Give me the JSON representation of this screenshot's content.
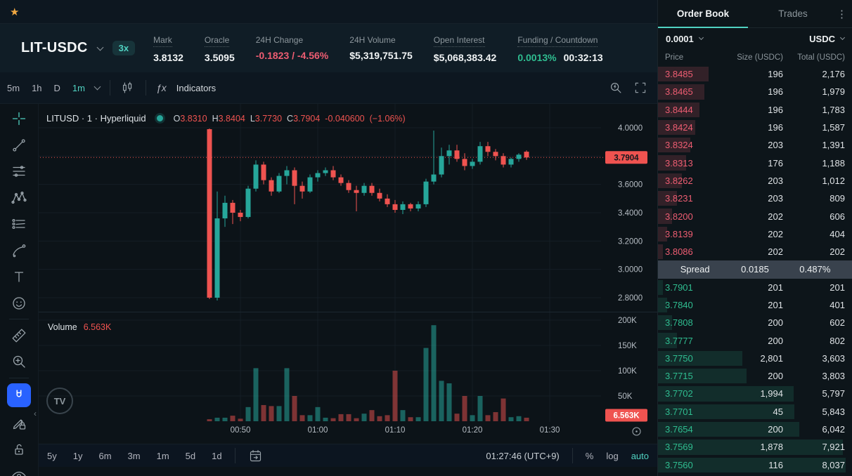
{
  "colors": {
    "accent": "#50d2c1",
    "up": "#26a69a",
    "down": "#ef5350",
    "bid": "#2fbd90",
    "ask": "#ee5d72",
    "magnet": "#2962ff",
    "star": "#f0a842"
  },
  "icons": {
    "star": "★",
    "kebab": "⋮",
    "fx": "ƒx",
    "tv": "TV",
    "collapse": "‹"
  },
  "header": {
    "symbol": "LIT-USDC",
    "leverage": "3x",
    "stats": [
      {
        "label": "Mark",
        "dotted": true,
        "parts": [
          {
            "text": "3.8132"
          }
        ]
      },
      {
        "label": "Oracle",
        "dotted": true,
        "parts": [
          {
            "text": "3.5095"
          }
        ]
      },
      {
        "label": "24H Change",
        "dotted": false,
        "parts": [
          {
            "text": "-0.1823 / -4.56%",
            "cls": "neg"
          }
        ]
      },
      {
        "label": "24H Volume",
        "dotted": false,
        "parts": [
          {
            "text": "$5,319,751.75"
          }
        ]
      },
      {
        "label": "Open Interest",
        "dotted": true,
        "parts": [
          {
            "text": "$5,068,383.42"
          }
        ]
      },
      {
        "label": "Funding / Countdown",
        "dotted": true,
        "parts": [
          {
            "text": "0.0013%",
            "cls": "pos"
          },
          {
            "text": "00:32:13"
          }
        ]
      }
    ]
  },
  "chart_toolbar": {
    "intervals": [
      "5m",
      "1h",
      "D",
      "1m"
    ],
    "active_interval": "1m",
    "indicators_label": "Indicators"
  },
  "legend": {
    "title": "LITUSD · 1 · Hyperliquid",
    "ohlc": [
      {
        "k": "O",
        "v": "3.8310"
      },
      {
        "k": "H",
        "v": "3.8404"
      },
      {
        "k": "L",
        "v": "3.7730"
      },
      {
        "k": "C",
        "v": "3.7904"
      }
    ],
    "change": "-0.040600",
    "change_pct": "(−1.06%)"
  },
  "volume_legend": {
    "label": "Volume",
    "value": "6.563K"
  },
  "bottom_toolbar": {
    "ranges": [
      "5y",
      "1y",
      "6m",
      "3m",
      "1m",
      "5d",
      "1d"
    ],
    "clock": "01:27:46 (UTC+9)",
    "percent_label": "%",
    "log_label": "log",
    "auto_label": "auto"
  },
  "orderbook": {
    "tabs": [
      "Order Book",
      "Trades"
    ],
    "active_tab": "Order Book",
    "tick_size": "0.0001",
    "quote_currency": "USDC",
    "columns": [
      "Price",
      "Size (USDC)",
      "Total (USDC)"
    ],
    "asks": [
      {
        "price": "3.8485",
        "size": "196",
        "total": "2,176"
      },
      {
        "price": "3.8465",
        "size": "196",
        "total": "1,979"
      },
      {
        "price": "3.8444",
        "size": "196",
        "total": "1,783"
      },
      {
        "price": "3.8424",
        "size": "196",
        "total": "1,587"
      },
      {
        "price": "3.8324",
        "size": "203",
        "total": "1,391"
      },
      {
        "price": "3.8313",
        "size": "176",
        "total": "1,188"
      },
      {
        "price": "3.8262",
        "size": "203",
        "total": "1,012"
      },
      {
        "price": "3.8231",
        "size": "203",
        "total": "809"
      },
      {
        "price": "3.8200",
        "size": "202",
        "total": "606"
      },
      {
        "price": "3.8139",
        "size": "202",
        "total": "404"
      },
      {
        "price": "3.8086",
        "size": "202",
        "total": "202"
      }
    ],
    "spread": {
      "label": "Spread",
      "value": "0.0185",
      "pct": "0.487%"
    },
    "bids": [
      {
        "price": "3.7901",
        "size": "201",
        "total": "201"
      },
      {
        "price": "3.7840",
        "size": "201",
        "total": "401"
      },
      {
        "price": "3.7808",
        "size": "200",
        "total": "602"
      },
      {
        "price": "3.7777",
        "size": "200",
        "total": "802"
      },
      {
        "price": "3.7750",
        "size": "2,801",
        "total": "3,603"
      },
      {
        "price": "3.7715",
        "size": "200",
        "total": "3,803"
      },
      {
        "price": "3.7702",
        "size": "1,994",
        "total": "5,797"
      },
      {
        "price": "3.7701",
        "size": "45",
        "total": "5,843"
      },
      {
        "price": "3.7654",
        "size": "200",
        "total": "6,042"
      },
      {
        "price": "3.7569",
        "size": "1,878",
        "total": "7,921"
      },
      {
        "price": "3.7560",
        "size": "116",
        "total": "8,037"
      }
    ]
  },
  "chart_data": {
    "type": "candlestick",
    "symbol": "LITUSD",
    "interval": "1",
    "exchange": "Hyperliquid",
    "ylim": [
      2.8,
      4.0
    ],
    "price_axis_labels": [
      {
        "label": "4.0000",
        "value": 4.0
      },
      {
        "label": "3.6000",
        "value": 3.6
      },
      {
        "label": "3.4000",
        "value": 3.4
      },
      {
        "label": "3.2000",
        "value": 3.2
      },
      {
        "label": "3.0000",
        "value": 3.0
      },
      {
        "label": "2.8000",
        "value": 2.8
      }
    ],
    "price_gridlines": [
      4.0,
      3.8,
      3.6,
      3.4,
      3.2,
      3.0,
      2.8
    ],
    "last_price": "3.7904",
    "last_price_value": 3.7904,
    "volume_axis": [
      {
        "label": "200K",
        "value": 200
      },
      {
        "label": "150K",
        "value": 150
      },
      {
        "label": "100K",
        "value": 100
      },
      {
        "label": "50K",
        "value": 50
      }
    ],
    "volume_label": "6.563K",
    "time_ticks": [
      {
        "label": "00:50",
        "index": 4
      },
      {
        "label": "01:00",
        "index": 14
      },
      {
        "label": "01:10",
        "index": 24
      },
      {
        "label": "01:20",
        "index": 34
      },
      {
        "label": "01:30",
        "index": 44
      }
    ],
    "candles": [
      [
        "00:46",
        3.99,
        3.995,
        2.79,
        2.8,
        4
      ],
      [
        "00:47",
        2.8,
        3.55,
        2.78,
        3.36,
        7
      ],
      [
        "00:48",
        3.36,
        3.52,
        3.3,
        3.47,
        7
      ],
      [
        "00:49",
        3.47,
        3.49,
        3.32,
        3.4,
        11
      ],
      [
        "00:50",
        3.4,
        3.42,
        3.34,
        3.37,
        5
      ],
      [
        "00:51",
        3.37,
        3.59,
        3.36,
        3.57,
        28
      ],
      [
        "00:52",
        3.57,
        3.77,
        3.55,
        3.74,
        105
      ],
      [
        "00:53",
        3.74,
        3.76,
        3.6,
        3.63,
        32
      ],
      [
        "00:54",
        3.63,
        3.65,
        3.52,
        3.55,
        30
      ],
      [
        "00:55",
        3.55,
        3.68,
        3.54,
        3.66,
        30
      ],
      [
        "00:56",
        3.66,
        3.73,
        3.6,
        3.7,
        105
      ],
      [
        "00:57",
        3.7,
        3.72,
        3.46,
        3.59,
        50
      ],
      [
        "00:58",
        3.59,
        3.62,
        3.5,
        3.55,
        12
      ],
      [
        "00:59",
        3.55,
        3.67,
        3.54,
        3.65,
        12
      ],
      [
        "01:00",
        3.65,
        3.7,
        3.62,
        3.68,
        28
      ],
      [
        "01:01",
        3.68,
        3.72,
        3.66,
        3.7,
        7
      ],
      [
        "01:02",
        3.7,
        3.73,
        3.63,
        3.65,
        6
      ],
      [
        "01:03",
        3.65,
        3.67,
        3.59,
        3.61,
        14
      ],
      [
        "01:04",
        3.61,
        3.63,
        3.54,
        3.56,
        14
      ],
      [
        "01:05",
        3.56,
        3.59,
        3.41,
        3.54,
        6
      ],
      [
        "01:06",
        3.54,
        3.61,
        3.52,
        3.59,
        15
      ],
      [
        "01:07",
        3.59,
        3.61,
        3.52,
        3.54,
        22
      ],
      [
        "01:08",
        3.54,
        3.57,
        3.48,
        3.5,
        10
      ],
      [
        "01:09",
        3.5,
        3.53,
        3.44,
        3.46,
        12
      ],
      [
        "01:10",
        3.46,
        3.49,
        3.4,
        3.42,
        100
      ],
      [
        "01:11",
        3.42,
        3.48,
        3.39,
        3.46,
        22
      ],
      [
        "01:12",
        3.46,
        3.47,
        3.41,
        3.43,
        8
      ],
      [
        "01:13",
        3.43,
        3.48,
        3.41,
        3.46,
        8
      ],
      [
        "01:14",
        3.46,
        3.64,
        3.44,
        3.62,
        145
      ],
      [
        "01:15",
        3.62,
        3.98,
        3.6,
        3.67,
        190
      ],
      [
        "01:16",
        3.67,
        3.86,
        3.65,
        3.8,
        80
      ],
      [
        "01:17",
        3.8,
        3.88,
        3.74,
        3.84,
        75
      ],
      [
        "01:18",
        3.84,
        3.88,
        3.76,
        3.78,
        15
      ],
      [
        "01:19",
        3.78,
        3.82,
        3.7,
        3.73,
        50
      ],
      [
        "01:20",
        3.73,
        3.78,
        3.71,
        3.76,
        12
      ],
      [
        "01:21",
        3.76,
        3.9,
        3.74,
        3.87,
        50
      ],
      [
        "01:22",
        3.87,
        3.9,
        3.8,
        3.83,
        12
      ],
      [
        "01:23",
        3.83,
        3.85,
        3.77,
        3.8,
        18
      ],
      [
        "01:24",
        3.8,
        3.82,
        3.72,
        3.74,
        45
      ],
      [
        "01:25",
        3.74,
        3.79,
        3.72,
        3.78,
        8
      ],
      [
        "01:26",
        3.78,
        3.82,
        3.76,
        3.81,
        10
      ],
      [
        "01:27",
        3.831,
        3.8404,
        3.773,
        3.7904,
        7
      ]
    ]
  }
}
